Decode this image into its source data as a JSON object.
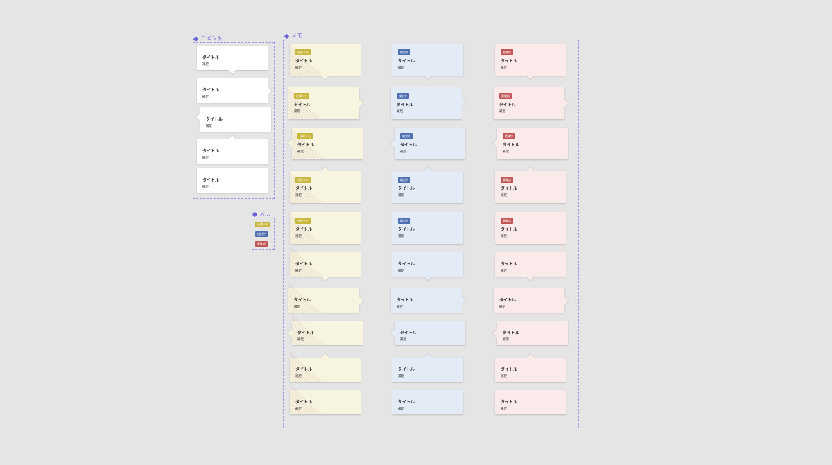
{
  "frames": {
    "comment": {
      "label": "コメント"
    },
    "memo": {
      "label": "メモ"
    },
    "legend": {
      "label": "メ..."
    }
  },
  "card_text": {
    "title": "タイトル",
    "subtitle": "補足"
  },
  "tags": {
    "yellow": "仕様メモ",
    "blue": "検討中",
    "red": "要確認"
  },
  "colors": {
    "accent": "#6b63d6",
    "yellow_bg": "#f7f5e0",
    "yellow_tag": "#c8b53a",
    "blue_bg": "#e3ebf6",
    "blue_tag": "#4f6fb3",
    "red_bg": "#fbeaea",
    "red_tag": "#c25555",
    "white_bg": "#ffffff"
  },
  "comment_cards": [
    {
      "tail": "bottom"
    },
    {
      "tail": "right"
    },
    {
      "tail": "left-top"
    },
    {
      "tail": "top"
    },
    {
      "tail": "none"
    }
  ],
  "memo_rows": [
    {
      "tag": true,
      "tail": "bottom",
      "hatch": true
    },
    {
      "tag": true,
      "tail": "right",
      "hatch": true
    },
    {
      "tag": true,
      "tail": "left",
      "hatch": true
    },
    {
      "tag": true,
      "tail": "top",
      "hatch": true
    },
    {
      "tag": true,
      "tail": "none",
      "hatch": true
    },
    {
      "tag": false,
      "tail": "bottom",
      "hatch": true
    },
    {
      "tag": false,
      "tail": "right",
      "hatch": true
    },
    {
      "tag": false,
      "tail": "left",
      "hatch": true
    },
    {
      "tag": false,
      "tail": "top",
      "hatch": true
    },
    {
      "tag": false,
      "tail": "none",
      "hatch": true
    }
  ]
}
